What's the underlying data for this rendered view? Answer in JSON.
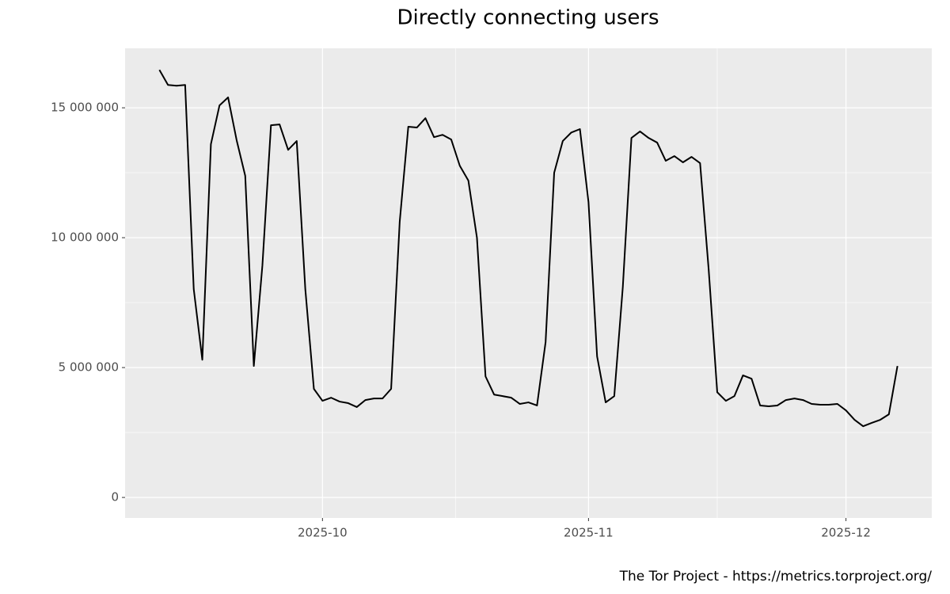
{
  "chart_data": {
    "type": "line",
    "title": "Directly connecting users",
    "caption": "The Tor Project - https://metrics.torproject.org/",
    "color": "#000000",
    "grid": true,
    "x": [
      "2025-09-12",
      "2025-09-13",
      "2025-09-14",
      "2025-09-15",
      "2025-09-16",
      "2025-09-17",
      "2025-09-18",
      "2025-09-19",
      "2025-09-20",
      "2025-09-21",
      "2025-09-22",
      "2025-09-23",
      "2025-09-24",
      "2025-09-25",
      "2025-09-26",
      "2025-09-27",
      "2025-09-28",
      "2025-09-29",
      "2025-09-30",
      "2025-10-01",
      "2025-10-02",
      "2025-10-03",
      "2025-10-04",
      "2025-10-05",
      "2025-10-06",
      "2025-10-07",
      "2025-10-08",
      "2025-10-09",
      "2025-10-10",
      "2025-10-11",
      "2025-10-12",
      "2025-10-13",
      "2025-10-14",
      "2025-10-15",
      "2025-10-16",
      "2025-10-17",
      "2025-10-18",
      "2025-10-19",
      "2025-10-20",
      "2025-10-21",
      "2025-10-22",
      "2025-10-23",
      "2025-10-24",
      "2025-10-25",
      "2025-10-26",
      "2025-10-27",
      "2025-10-28",
      "2025-10-29",
      "2025-10-30",
      "2025-10-31",
      "2025-11-01",
      "2025-11-02",
      "2025-11-03",
      "2025-11-04",
      "2025-11-05",
      "2025-11-06",
      "2025-11-07",
      "2025-11-08",
      "2025-11-09",
      "2025-11-10",
      "2025-11-11",
      "2025-11-12",
      "2025-11-13",
      "2025-11-14",
      "2025-11-15",
      "2025-11-16",
      "2025-11-17",
      "2025-11-18",
      "2025-11-19",
      "2025-11-20",
      "2025-11-21",
      "2025-11-22",
      "2025-11-23",
      "2025-11-24",
      "2025-11-25",
      "2025-11-26",
      "2025-11-27",
      "2025-11-28",
      "2025-11-29",
      "2025-11-30",
      "2025-12-01",
      "2025-12-02",
      "2025-12-03",
      "2025-12-04",
      "2025-12-05",
      "2025-12-06",
      "2025-12-07"
    ],
    "values": [
      16460000,
      15880000,
      15850000,
      15880000,
      8020000,
      5300000,
      13600000,
      15090000,
      15400000,
      13750000,
      12380000,
      5060000,
      8930000,
      14330000,
      14360000,
      13380000,
      13720000,
      8020000,
      4180000,
      3720000,
      3840000,
      3690000,
      3630000,
      3480000,
      3750000,
      3810000,
      3810000,
      4180000,
      10610000,
      14270000,
      14240000,
      14600000,
      13870000,
      13960000,
      13780000,
      12770000,
      12200000,
      10000000,
      4660000,
      3960000,
      3900000,
      3840000,
      3600000,
      3660000,
      3540000,
      5980000,
      12500000,
      13720000,
      14050000,
      14180000,
      11370000,
      5430000,
      3660000,
      3900000,
      8110000,
      13840000,
      14090000,
      13840000,
      13660000,
      12960000,
      13140000,
      12900000,
      13110000,
      12870000,
      8780000,
      4050000,
      3720000,
      3900000,
      4700000,
      4570000,
      3540000,
      3510000,
      3540000,
      3750000,
      3810000,
      3750000,
      3600000,
      3570000,
      3570000,
      3600000,
      3350000,
      2990000,
      2740000,
      2870000,
      2990000,
      3200000,
      5060000
    ],
    "xlim": [
      "2025-09-08",
      "2025-12-11"
    ],
    "xticks": [
      {
        "value": "2025-10-01",
        "label": "2025-10"
      },
      {
        "value": "2025-11-01",
        "label": "2025-11"
      },
      {
        "value": "2025-12-01",
        "label": "2025-12"
      }
    ],
    "ylim": [
      -790000,
      17290000
    ],
    "yticks": [
      0,
      {
        "value": 5000000,
        "label": "5 000 000"
      },
      {
        "value": 10000000,
        "label": "10 000 000"
      },
      {
        "value": 15000000,
        "label": "15 000 000"
      }
    ]
  }
}
